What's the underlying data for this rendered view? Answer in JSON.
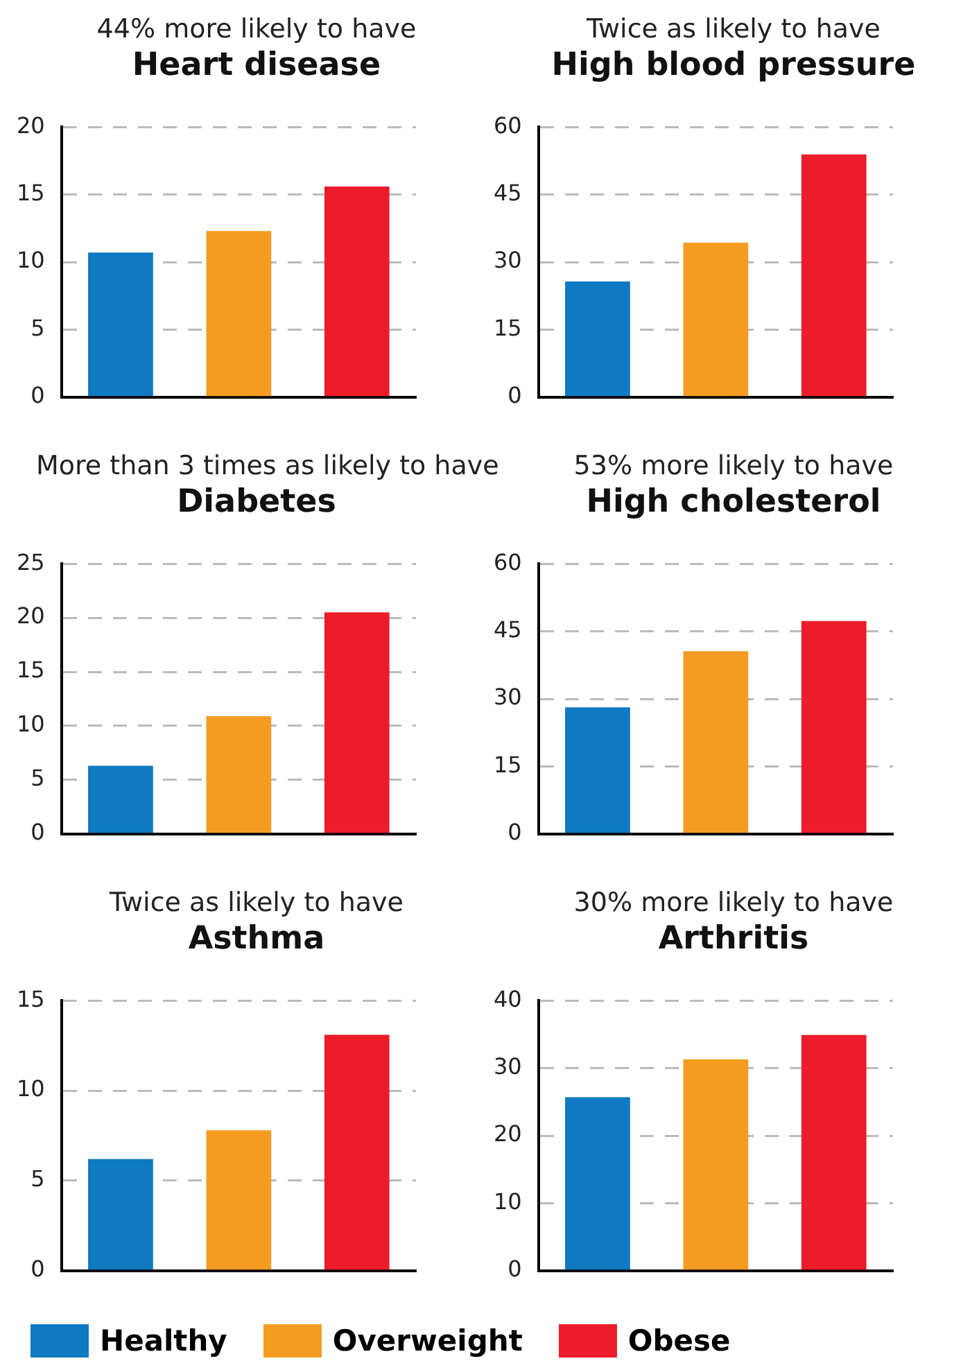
{
  "chart_data": [
    {
      "type": "bar",
      "subtitle": "44% more likely to have",
      "title": "Heart disease",
      "categories": [
        null
      ],
      "series": [
        {
          "name": "Healthy",
          "color": "#0f79c2",
          "values": [
            10.7
          ]
        },
        {
          "name": "Overweight",
          "color": "#f59b22",
          "values": [
            12.3
          ]
        },
        {
          "name": "Obese",
          "color": "#ec1c2a",
          "values": [
            15.6
          ]
        }
      ],
      "ylim": [
        0,
        20
      ],
      "yticks": [
        0,
        5,
        10,
        15,
        20
      ],
      "grid": "y",
      "legend": "bottom"
    },
    {
      "type": "bar",
      "subtitle": "Twice as likely to have",
      "title": "High blood pressure",
      "categories": [
        null
      ],
      "series": [
        {
          "color": "#0f79c2",
          "values": [
            25.7
          ]
        },
        {
          "color": "#f59b22",
          "values": [
            34.3
          ]
        },
        {
          "color": "#ec1c2a",
          "values": [
            53.9
          ]
        }
      ],
      "ylim": [
        0,
        60
      ],
      "yticks": [
        0,
        15,
        30,
        45,
        60
      ],
      "grid": "y"
    },
    {
      "type": "bar",
      "subtitle": "More than 3 times as likely to have",
      "title": "Diabetes",
      "categories": [
        null
      ],
      "series": [
        {
          "color": "#0f79c2",
          "values": [
            6.3
          ]
        },
        {
          "color": "#f59b22",
          "values": [
            10.9
          ]
        },
        {
          "color": "#ec1c2a",
          "values": [
            20.5
          ]
        }
      ],
      "ylim": [
        0,
        25
      ],
      "yticks": [
        0,
        5,
        10,
        15,
        20,
        25
      ],
      "grid": "y"
    },
    {
      "type": "bar",
      "subtitle": "53% more likely to have",
      "title": "High cholesterol",
      "categories": [
        null
      ],
      "series": [
        {
          "color": "#0f79c2",
          "values": [
            28.1
          ]
        },
        {
          "color": "#f59b22",
          "values": [
            40.6
          ]
        },
        {
          "color": "#ec1c2a",
          "values": [
            47.3
          ]
        }
      ],
      "ylim": [
        0,
        60
      ],
      "yticks": [
        0,
        15,
        30,
        45,
        60
      ],
      "grid": "y"
    },
    {
      "type": "bar",
      "subtitle": "Twice as likely to have",
      "title": "Asthma",
      "categories": [
        null
      ],
      "series": [
        {
          "color": "#0f79c2",
          "values": [
            6.2
          ]
        },
        {
          "color": "#f59b22",
          "values": [
            7.8
          ]
        },
        {
          "color": "#ec1c2a",
          "values": [
            13.1
          ]
        }
      ],
      "ylim": [
        0,
        15
      ],
      "yticks": [
        0,
        5,
        10,
        15
      ],
      "grid": "y"
    },
    {
      "type": "bar",
      "subtitle": "30% more likely to have",
      "title": "Arthritis",
      "categories": [
        null
      ],
      "series": [
        {
          "color": "#0f79c2",
          "values": [
            25.7
          ]
        },
        {
          "color": "#f59b22",
          "values": [
            31.3
          ]
        },
        {
          "color": "#ec1c2a",
          "values": [
            34.9
          ]
        }
      ],
      "ylim": [
        0,
        40
      ],
      "yticks": [
        0,
        10,
        20,
        30,
        40
      ],
      "grid": "y"
    }
  ]
}
